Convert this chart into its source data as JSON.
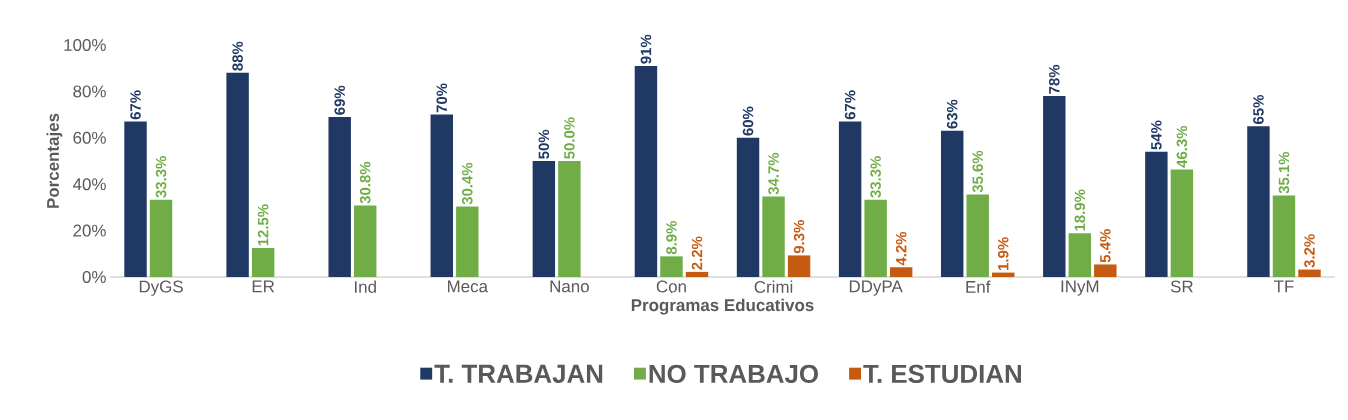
{
  "chart_data": {
    "type": "bar",
    "xlabel": "Programas Educativos",
    "ylabel": "Porcentajes",
    "categories": [
      "DyGS",
      "ER",
      "Ind",
      "Meca",
      "Nano",
      "Con",
      "Crimi",
      "DDyPA",
      "Enf",
      "INyM",
      "SR",
      "TF"
    ],
    "ylim": [
      0,
      100
    ],
    "yticks": [
      {
        "value": 0,
        "label": "0%"
      },
      {
        "value": 20,
        "label": "20%"
      },
      {
        "value": 40,
        "label": "40%"
      },
      {
        "value": 60,
        "label": "60%"
      },
      {
        "value": 80,
        "label": "80%"
      },
      {
        "value": 100,
        "label": "100%"
      }
    ],
    "legend": "bottom",
    "grid": false,
    "series": [
      {
        "name": "T. TRABAJAN",
        "color": "#203864",
        "values": [
          67,
          88,
          69,
          70,
          50,
          91,
          60,
          67,
          63,
          78,
          54,
          65
        ],
        "value_labels": [
          "67%",
          "88%",
          "69%",
          "70%",
          "50%",
          "91%",
          "60%",
          "67%",
          "63%",
          "78%",
          "54%",
          "65%"
        ]
      },
      {
        "name": "NO TRABAJO",
        "color": "#70ad47",
        "values": [
          33.3,
          12.5,
          30.8,
          30.4,
          50.0,
          8.9,
          34.7,
          33.3,
          35.6,
          18.9,
          46.3,
          35.1
        ],
        "value_labels": [
          "33.3%",
          "12.5%",
          "30.8%",
          "30.4%",
          "50.0%",
          "8.9%",
          "34.7%",
          "33.3%",
          "35.6%",
          "18.9%",
          "46.3%",
          "35.1%"
        ]
      },
      {
        "name": "T. ESTUDIAN",
        "color": "#c55a11",
        "values": [
          null,
          null,
          null,
          null,
          null,
          2.2,
          9.3,
          4.2,
          1.9,
          5.4,
          null,
          3.2
        ],
        "value_labels": [
          null,
          null,
          null,
          null,
          null,
          "2.2%",
          "9.3%",
          "4.2%",
          "1.9%",
          "5.4%",
          null,
          "3.2%"
        ]
      }
    ]
  }
}
